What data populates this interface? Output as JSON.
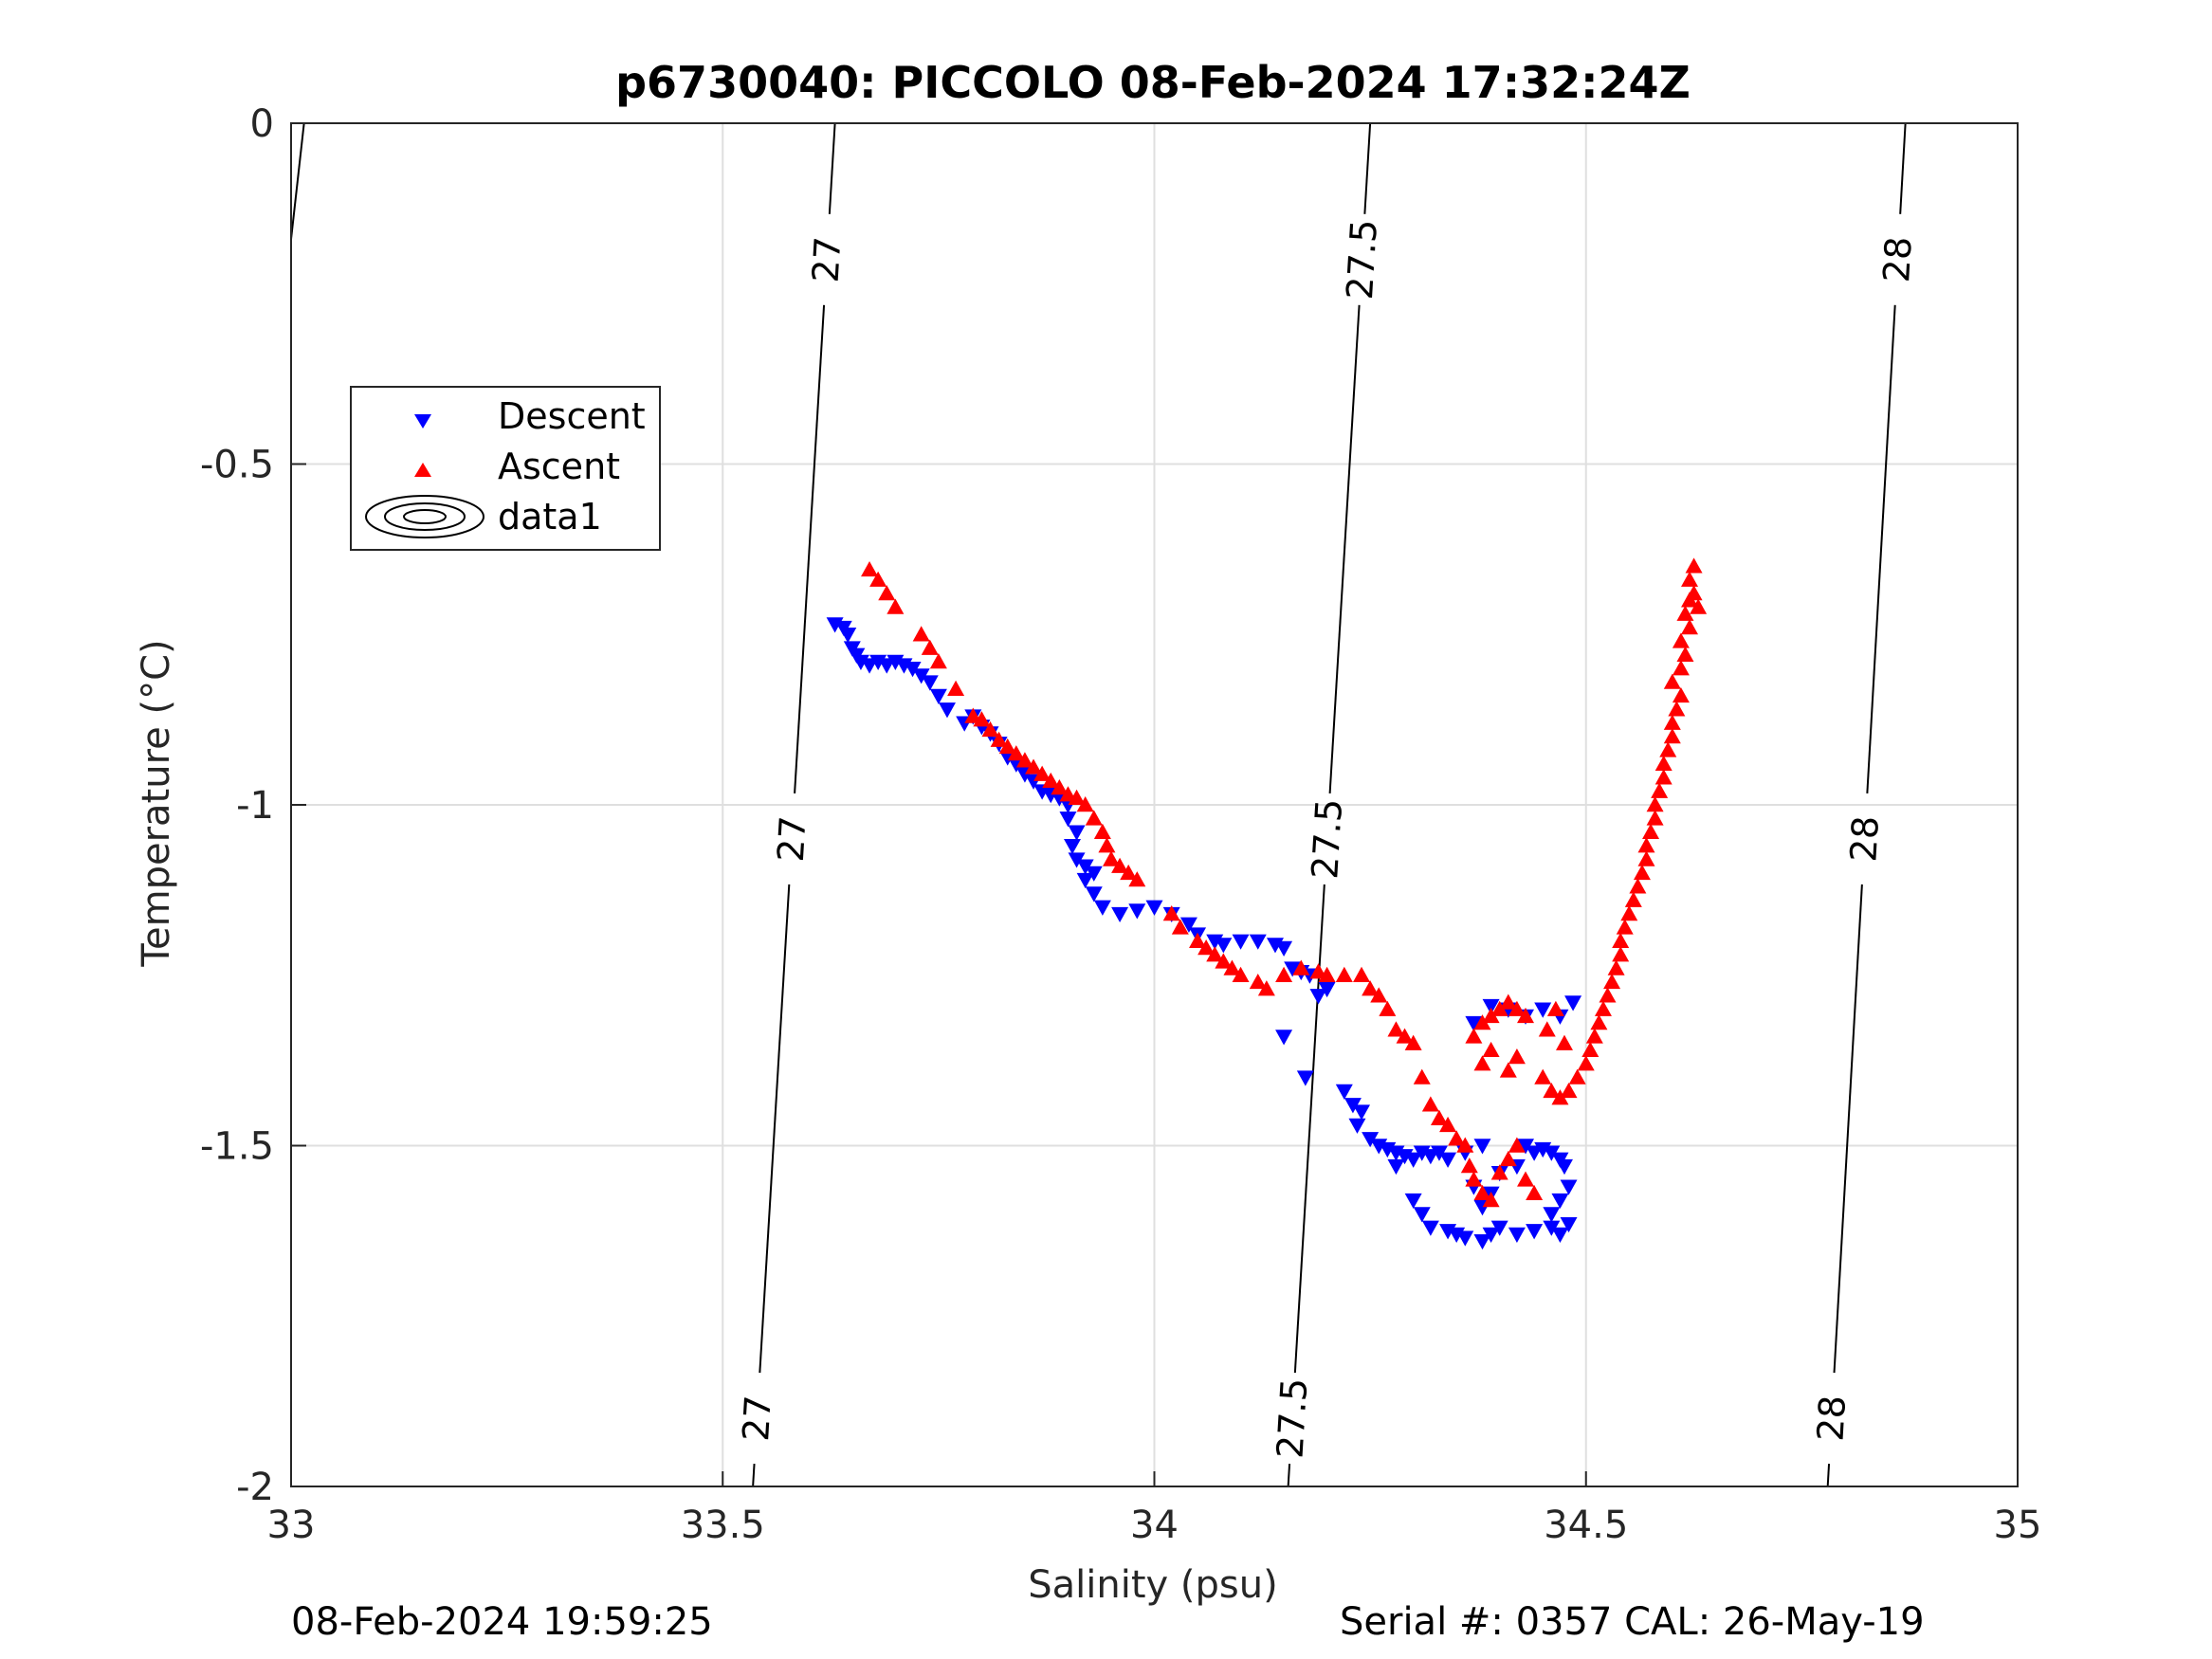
{
  "chart_data": {
    "type": "scatter",
    "title": "p6730040: PICCOLO 08-Feb-2024 17:32:24Z",
    "xlabel": "Salinity (psu)",
    "ylabel": "Temperature (°C)",
    "xlim": [
      33,
      35
    ],
    "ylim": [
      -2,
      0
    ],
    "xticks": [
      33,
      33.5,
      34,
      34.5,
      35
    ],
    "xtick_labels": [
      "33",
      "33.5",
      "34",
      "34.5",
      "35"
    ],
    "yticks": [
      0,
      -0.5,
      -1,
      -1.5,
      -2
    ],
    "ytick_labels": [
      "0",
      "-0.5",
      "-1",
      "-1.5",
      "-2"
    ],
    "grid": true,
    "legend_position": "upper-left",
    "legend": [
      "Descent",
      "Ascent",
      "data1"
    ],
    "series": [
      {
        "name": "Descent",
        "marker": "triangle-down",
        "color": "#0000ff",
        "points": [
          [
            33.63,
            -0.735
          ],
          [
            33.64,
            -0.74
          ],
          [
            33.645,
            -0.75
          ],
          [
            33.65,
            -0.77
          ],
          [
            33.655,
            -0.78
          ],
          [
            33.66,
            -0.79
          ],
          [
            33.67,
            -0.795
          ],
          [
            33.68,
            -0.79
          ],
          [
            33.69,
            -0.795
          ],
          [
            33.7,
            -0.79
          ],
          [
            33.71,
            -0.795
          ],
          [
            33.72,
            -0.8
          ],
          [
            33.73,
            -0.81
          ],
          [
            33.74,
            -0.82
          ],
          [
            33.75,
            -0.84
          ],
          [
            33.76,
            -0.86
          ],
          [
            33.78,
            -0.88
          ],
          [
            33.79,
            -0.87
          ],
          [
            33.8,
            -0.885
          ],
          [
            33.81,
            -0.895
          ],
          [
            33.82,
            -0.91
          ],
          [
            33.83,
            -0.93
          ],
          [
            33.84,
            -0.94
          ],
          [
            33.85,
            -0.955
          ],
          [
            33.86,
            -0.965
          ],
          [
            33.87,
            -0.98
          ],
          [
            33.88,
            -0.985
          ],
          [
            33.89,
            -0.99
          ],
          [
            33.9,
            -1.0
          ],
          [
            33.9,
            -1.02
          ],
          [
            33.91,
            -1.04
          ],
          [
            33.905,
            -1.06
          ],
          [
            33.91,
            -1.08
          ],
          [
            33.92,
            -1.09
          ],
          [
            33.93,
            -1.1
          ],
          [
            33.92,
            -1.11
          ],
          [
            33.93,
            -1.13
          ],
          [
            33.94,
            -1.15
          ],
          [
            33.96,
            -1.16
          ],
          [
            33.98,
            -1.155
          ],
          [
            34.0,
            -1.15
          ],
          [
            34.02,
            -1.16
          ],
          [
            34.04,
            -1.175
          ],
          [
            34.05,
            -1.19
          ],
          [
            34.07,
            -1.2
          ],
          [
            34.08,
            -1.205
          ],
          [
            34.1,
            -1.2
          ],
          [
            34.12,
            -1.2
          ],
          [
            34.14,
            -1.205
          ],
          [
            34.15,
            -1.21
          ],
          [
            34.16,
            -1.24
          ],
          [
            34.17,
            -1.245
          ],
          [
            34.18,
            -1.25
          ],
          [
            34.19,
            -1.28
          ],
          [
            34.2,
            -1.27
          ],
          [
            34.15,
            -1.34
          ],
          [
            34.175,
            -1.4
          ],
          [
            34.22,
            -1.42
          ],
          [
            34.23,
            -1.44
          ],
          [
            34.24,
            -1.45
          ],
          [
            34.235,
            -1.47
          ],
          [
            34.25,
            -1.49
          ],
          [
            34.26,
            -1.5
          ],
          [
            34.27,
            -1.505
          ],
          [
            34.28,
            -1.51
          ],
          [
            34.29,
            -1.515
          ],
          [
            34.3,
            -1.52
          ],
          [
            34.31,
            -1.51
          ],
          [
            34.32,
            -1.515
          ],
          [
            34.33,
            -1.51
          ],
          [
            34.28,
            -1.53
          ],
          [
            34.3,
            -1.58
          ],
          [
            34.31,
            -1.6
          ],
          [
            34.32,
            -1.62
          ],
          [
            34.34,
            -1.625
          ],
          [
            34.35,
            -1.63
          ],
          [
            34.36,
            -1.635
          ],
          [
            34.38,
            -1.64
          ],
          [
            34.39,
            -1.63
          ],
          [
            34.4,
            -1.62
          ],
          [
            34.42,
            -1.63
          ],
          [
            34.44,
            -1.625
          ],
          [
            34.46,
            -1.62
          ],
          [
            34.47,
            -1.63
          ],
          [
            34.48,
            -1.615
          ],
          [
            34.46,
            -1.6
          ],
          [
            34.47,
            -1.58
          ],
          [
            34.48,
            -1.56
          ],
          [
            34.475,
            -1.53
          ],
          [
            34.47,
            -1.52
          ],
          [
            34.46,
            -1.51
          ],
          [
            34.45,
            -1.505
          ],
          [
            34.44,
            -1.51
          ],
          [
            34.43,
            -1.5
          ],
          [
            34.38,
            -1.59
          ],
          [
            34.39,
            -1.57
          ],
          [
            34.37,
            -1.56
          ],
          [
            34.4,
            -1.54
          ],
          [
            34.38,
            -1.5
          ],
          [
            34.36,
            -1.51
          ],
          [
            34.34,
            -1.52
          ],
          [
            34.42,
            -1.53
          ],
          [
            34.39,
            -1.295
          ],
          [
            34.41,
            -1.3
          ],
          [
            34.43,
            -1.31
          ],
          [
            34.37,
            -1.32
          ],
          [
            34.485,
            -1.29
          ],
          [
            34.45,
            -1.3
          ],
          [
            34.47,
            -1.31
          ]
        ]
      },
      {
        "name": "Ascent",
        "marker": "triangle-up",
        "color": "#ff0000",
        "points": [
          [
            33.67,
            -0.655
          ],
          [
            33.68,
            -0.67
          ],
          [
            33.69,
            -0.69
          ],
          [
            33.7,
            -0.71
          ],
          [
            33.73,
            -0.75
          ],
          [
            33.74,
            -0.77
          ],
          [
            33.75,
            -0.79
          ],
          [
            33.77,
            -0.83
          ],
          [
            33.79,
            -0.87
          ],
          [
            33.8,
            -0.875
          ],
          [
            33.81,
            -0.89
          ],
          [
            33.82,
            -0.905
          ],
          [
            33.83,
            -0.915
          ],
          [
            33.84,
            -0.925
          ],
          [
            33.85,
            -0.935
          ],
          [
            33.86,
            -0.945
          ],
          [
            33.87,
            -0.955
          ],
          [
            33.88,
            -0.965
          ],
          [
            33.89,
            -0.975
          ],
          [
            33.9,
            -0.985
          ],
          [
            33.91,
            -0.99
          ],
          [
            33.92,
            -1.0
          ],
          [
            33.93,
            -1.02
          ],
          [
            33.94,
            -1.04
          ],
          [
            33.945,
            -1.06
          ],
          [
            33.95,
            -1.08
          ],
          [
            33.96,
            -1.09
          ],
          [
            33.97,
            -1.1
          ],
          [
            33.98,
            -1.11
          ],
          [
            34.02,
            -1.16
          ],
          [
            34.03,
            -1.18
          ],
          [
            34.05,
            -1.2
          ],
          [
            34.06,
            -1.21
          ],
          [
            34.07,
            -1.22
          ],
          [
            34.08,
            -1.23
          ],
          [
            34.09,
            -1.24
          ],
          [
            34.1,
            -1.25
          ],
          [
            34.12,
            -1.26
          ],
          [
            34.13,
            -1.27
          ],
          [
            34.15,
            -1.25
          ],
          [
            34.17,
            -1.24
          ],
          [
            34.19,
            -1.245
          ],
          [
            34.2,
            -1.25
          ],
          [
            34.22,
            -1.25
          ],
          [
            34.24,
            -1.25
          ],
          [
            34.25,
            -1.27
          ],
          [
            34.26,
            -1.28
          ],
          [
            34.27,
            -1.3
          ],
          [
            34.28,
            -1.33
          ],
          [
            34.29,
            -1.34
          ],
          [
            34.3,
            -1.35
          ],
          [
            34.31,
            -1.4
          ],
          [
            34.32,
            -1.44
          ],
          [
            34.33,
            -1.46
          ],
          [
            34.34,
            -1.47
          ],
          [
            34.35,
            -1.49
          ],
          [
            34.36,
            -1.5
          ],
          [
            34.365,
            -1.53
          ],
          [
            34.37,
            -1.55
          ],
          [
            34.38,
            -1.57
          ],
          [
            34.39,
            -1.58
          ],
          [
            34.37,
            -1.34
          ],
          [
            34.38,
            -1.32
          ],
          [
            34.39,
            -1.31
          ],
          [
            34.4,
            -1.3
          ],
          [
            34.41,
            -1.29
          ],
          [
            34.42,
            -1.3
          ],
          [
            34.43,
            -1.31
          ],
          [
            34.38,
            -1.38
          ],
          [
            34.39,
            -1.36
          ],
          [
            34.41,
            -1.39
          ],
          [
            34.42,
            -1.37
          ],
          [
            34.4,
            -1.54
          ],
          [
            34.41,
            -1.52
          ],
          [
            34.42,
            -1.5
          ],
          [
            34.43,
            -1.55
          ],
          [
            34.44,
            -1.57
          ],
          [
            34.45,
            -1.4
          ],
          [
            34.46,
            -1.42
          ],
          [
            34.47,
            -1.43
          ],
          [
            34.455,
            -1.33
          ],
          [
            34.465,
            -1.3
          ],
          [
            34.475,
            -1.35
          ],
          [
            34.48,
            -1.42
          ],
          [
            34.49,
            -1.4
          ],
          [
            34.5,
            -1.38
          ],
          [
            34.505,
            -1.36
          ],
          [
            34.51,
            -1.34
          ],
          [
            34.515,
            -1.32
          ],
          [
            34.52,
            -1.3
          ],
          [
            34.525,
            -1.28
          ],
          [
            34.53,
            -1.26
          ],
          [
            34.535,
            -1.24
          ],
          [
            34.54,
            -1.22
          ],
          [
            34.54,
            -1.2
          ],
          [
            34.545,
            -1.18
          ],
          [
            34.55,
            -1.16
          ],
          [
            34.555,
            -1.14
          ],
          [
            34.56,
            -1.12
          ],
          [
            34.565,
            -1.1
          ],
          [
            34.57,
            -1.08
          ],
          [
            34.57,
            -1.06
          ],
          [
            34.575,
            -1.04
          ],
          [
            34.58,
            -1.02
          ],
          [
            34.58,
            -1.0
          ],
          [
            34.585,
            -0.98
          ],
          [
            34.59,
            -0.96
          ],
          [
            34.59,
            -0.94
          ],
          [
            34.595,
            -0.92
          ],
          [
            34.6,
            -0.9
          ],
          [
            34.6,
            -0.88
          ],
          [
            34.605,
            -0.86
          ],
          [
            34.61,
            -0.84
          ],
          [
            34.6,
            -0.82
          ],
          [
            34.61,
            -0.8
          ],
          [
            34.615,
            -0.78
          ],
          [
            34.61,
            -0.76
          ],
          [
            34.62,
            -0.74
          ],
          [
            34.615,
            -0.72
          ],
          [
            34.62,
            -0.7
          ],
          [
            34.625,
            -0.69
          ],
          [
            34.62,
            -0.67
          ],
          [
            34.63,
            -0.71
          ],
          [
            34.625,
            -0.65
          ]
        ]
      }
    ],
    "density_contours": {
      "name": "data1",
      "levels": [
        "27",
        "27.5",
        "28"
      ],
      "isolines": [
        {
          "level": "27",
          "points": [
            [
              33.63,
              0
            ],
            [
              33.535,
              -2
            ]
          ]
        },
        {
          "level": "27.5",
          "points": [
            [
              34.25,
              0
            ],
            [
              34.155,
              -2
            ]
          ]
        },
        {
          "level": "28",
          "points": [
            [
              34.87,
              0
            ],
            [
              34.78,
              -2
            ]
          ]
        }
      ],
      "partial_line": {
        "points": [
          [
            33.015,
            0
          ],
          [
            33.0,
            -0.17
          ]
        ]
      },
      "label_y": [
        -0.2,
        -1.05,
        -1.9
      ]
    }
  },
  "footer": {
    "timestamp": "08-Feb-2024 19:59:25",
    "serial": "Serial #: 0357  CAL: 26-May-19"
  }
}
